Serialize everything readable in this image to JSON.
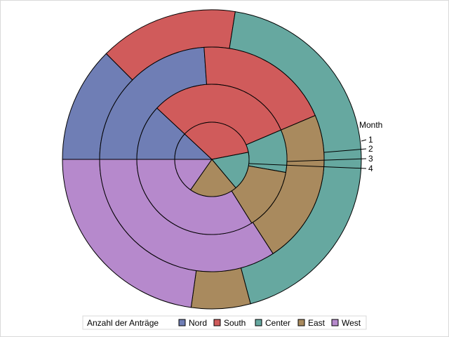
{
  "chart_data": {
    "type": "pie",
    "subtype": "nested-donut",
    "title": "",
    "legend": {
      "title": "Anzahl der Anträge",
      "placement": "bottom"
    },
    "ring_label_title": "Month",
    "categories": [
      "Nord",
      "South",
      "Center",
      "East",
      "West"
    ],
    "colors": {
      "Nord": "#6f7eb5",
      "South": "#d05b5b",
      "Center": "#66a8a0",
      "East": "#a98a5e",
      "West": "#b689cc"
    },
    "start_angle": "9 o'clock, clockwise",
    "rings": [
      {
        "name": "1",
        "position": "outer",
        "values": [
          45,
          54,
          156,
          23,
          82
        ]
      },
      {
        "name": "2",
        "values": [
          86,
          71,
          0,
          80,
          123
        ]
      },
      {
        "name": "3",
        "values": [
          43,
          114,
          33,
          48,
          122
        ]
      },
      {
        "name": "4",
        "position": "inner",
        "values": [
          43,
          126,
          61,
          75,
          55
        ]
      }
    ]
  }
}
